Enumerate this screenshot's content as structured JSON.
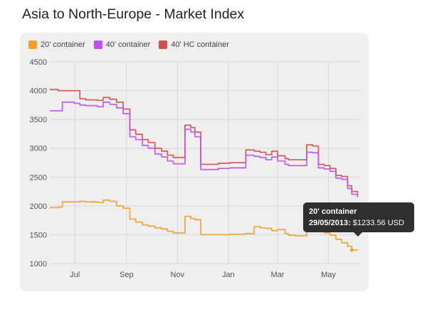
{
  "page": {
    "title": "Asia to North-Europe - Market Index"
  },
  "tooltip": {
    "series": "20' container",
    "date": "29/05/2013",
    "value": "$1233.56 USD"
  },
  "colors": {
    "20ft": "#f0a030",
    "40ft": "#c050f0",
    "40hc": "#d05050",
    "card": "#efefef",
    "grid": "#d8d8d8"
  },
  "chart_data": {
    "type": "line",
    "title": "Asia to North-Europe - Market Index",
    "xlabel": "",
    "ylabel": "",
    "xlim": [
      "2012-06-01",
      "2013-06-08"
    ],
    "ylim": [
      1000,
      4500
    ],
    "y_ticks": [
      1000,
      1500,
      2000,
      2500,
      3000,
      3500,
      4000,
      4500
    ],
    "x_ticks": [
      {
        "label": "Jul",
        "date": "2012-07-01"
      },
      {
        "label": "Sep",
        "date": "2012-09-01"
      },
      {
        "label": "Nov",
        "date": "2012-11-01"
      },
      {
        "label": "Jan",
        "date": "2013-01-01"
      },
      {
        "label": "Mar",
        "date": "2013-03-01"
      },
      {
        "label": "May",
        "date": "2013-05-01"
      }
    ],
    "grid": true,
    "legend_position": "top-left",
    "series": [
      {
        "name": "20' container",
        "color": "#f0a030",
        "x": [
          "2012-06-01",
          "2012-06-11",
          "2012-06-16",
          "2012-07-07",
          "2012-07-14",
          "2012-07-28",
          "2012-08-04",
          "2012-08-12",
          "2012-08-20",
          "2012-08-28",
          "2012-09-05",
          "2012-09-12",
          "2012-09-20",
          "2012-09-27",
          "2012-10-05",
          "2012-10-13",
          "2012-10-20",
          "2012-10-27",
          "2012-11-03",
          "2012-11-10",
          "2012-11-17",
          "2012-11-22",
          "2012-11-29",
          "2012-12-20",
          "2013-01-03",
          "2013-01-10",
          "2013-01-22",
          "2013-02-01",
          "2013-02-08",
          "2013-02-15",
          "2013-02-22",
          "2013-03-01",
          "2013-03-10",
          "2013-03-14",
          "2013-03-22",
          "2013-04-05",
          "2013-04-12",
          "2013-04-19",
          "2013-04-26",
          "2013-05-03",
          "2013-05-10",
          "2013-05-17",
          "2013-05-24",
          "2013-05-29",
          "2013-06-05"
        ],
        "y": [
          1970,
          1980,
          2070,
          2080,
          2070,
          2060,
          2100,
          2080,
          2000,
          1960,
          1770,
          1720,
          1670,
          1650,
          1620,
          1600,
          1560,
          1530,
          1530,
          1820,
          1780,
          1760,
          1500,
          1500,
          1510,
          1510,
          1520,
          1640,
          1620,
          1610,
          1570,
          1590,
          1520,
          1490,
          1480,
          1600,
          1590,
          1580,
          1530,
          1490,
          1420,
          1360,
          1300,
          1233.56,
          1230
        ]
      },
      {
        "name": "40' container",
        "color": "#c050f0",
        "x": [
          "2012-06-01",
          "2012-06-11",
          "2012-06-16",
          "2012-06-30",
          "2012-07-07",
          "2012-07-14",
          "2012-07-28",
          "2012-08-04",
          "2012-08-12",
          "2012-08-20",
          "2012-08-28",
          "2012-09-05",
          "2012-09-12",
          "2012-09-20",
          "2012-09-27",
          "2012-10-05",
          "2012-10-13",
          "2012-10-20",
          "2012-10-27",
          "2012-11-03",
          "2012-11-10",
          "2012-11-17",
          "2012-11-22",
          "2012-11-29",
          "2012-12-10",
          "2012-12-20",
          "2013-01-03",
          "2013-01-10",
          "2013-01-22",
          "2013-02-01",
          "2013-02-08",
          "2013-02-15",
          "2013-02-22",
          "2013-03-01",
          "2013-03-10",
          "2013-03-14",
          "2013-03-22",
          "2013-04-05",
          "2013-04-12",
          "2013-04-19",
          "2013-04-26",
          "2013-05-03",
          "2013-05-10",
          "2013-05-17",
          "2013-05-24",
          "2013-05-29",
          "2013-06-05"
        ],
        "y": [
          3650,
          3650,
          3800,
          3780,
          3750,
          3740,
          3720,
          3800,
          3760,
          3700,
          3600,
          3200,
          3150,
          3050,
          3000,
          2900,
          2850,
          2780,
          2730,
          2730,
          3330,
          3280,
          3200,
          2630,
          2630,
          2650,
          2660,
          2660,
          2880,
          2860,
          2840,
          2800,
          2850,
          2780,
          2720,
          2700,
          2700,
          2930,
          2920,
          2660,
          2640,
          2600,
          2480,
          2460,
          2300,
          2200,
          2150
        ]
      },
      {
        "name": "40' HC container",
        "color": "#d05050",
        "x": [
          "2012-06-01",
          "2012-06-11",
          "2012-06-16",
          "2012-06-30",
          "2012-07-07",
          "2012-07-14",
          "2012-07-28",
          "2012-08-04",
          "2012-08-12",
          "2012-08-20",
          "2012-08-28",
          "2012-09-05",
          "2012-09-12",
          "2012-09-20",
          "2012-09-27",
          "2012-10-05",
          "2012-10-13",
          "2012-10-20",
          "2012-10-27",
          "2012-11-03",
          "2012-11-10",
          "2012-11-17",
          "2012-11-22",
          "2012-11-29",
          "2012-12-10",
          "2012-12-20",
          "2013-01-03",
          "2013-01-10",
          "2013-01-22",
          "2013-02-01",
          "2013-02-08",
          "2013-02-15",
          "2013-02-22",
          "2013-03-01",
          "2013-03-10",
          "2013-03-14",
          "2013-03-22",
          "2013-04-05",
          "2013-04-12",
          "2013-04-19",
          "2013-04-26",
          "2013-05-03",
          "2013-05-10",
          "2013-05-17",
          "2013-05-24",
          "2013-05-29",
          "2013-06-05"
        ],
        "y": [
          4020,
          4000,
          4000,
          4000,
          3860,
          3840,
          3830,
          3880,
          3850,
          3800,
          3680,
          3320,
          3240,
          3150,
          3100,
          3000,
          2950,
          2880,
          2840,
          2840,
          3400,
          3360,
          3280,
          2720,
          2720,
          2740,
          2750,
          2750,
          2970,
          2950,
          2930,
          2890,
          2950,
          2870,
          2820,
          2800,
          2800,
          3060,
          3040,
          2720,
          2700,
          2650,
          2530,
          2510,
          2350,
          2250,
          2210
        ]
      }
    ]
  }
}
